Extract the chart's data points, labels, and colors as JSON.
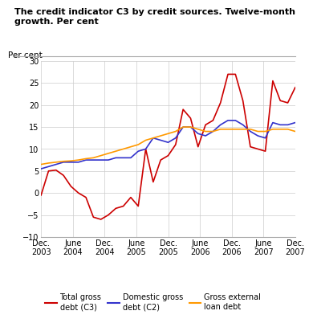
{
  "title_line1": "The credit indicator C3 by credit sources. Twelve-month",
  "title_line2": "growth. Per cent",
  "ylabel": "Per cent",
  "ylim": [
    -10,
    30
  ],
  "yticks": [
    -10,
    -5,
    0,
    5,
    10,
    15,
    20,
    25,
    30
  ],
  "x_labels": [
    "Dec.\n2003",
    "June\n2004",
    "Dec.\n2004",
    "June\n2005",
    "Dec.\n2005",
    "June\n2006",
    "Dec.\n2006",
    "June\n2007",
    "Dec.\n2007"
  ],
  "total_gross_debt_c3": [
    -0.5,
    5.0,
    5.2,
    4.0,
    1.5,
    0.0,
    -1.0,
    -5.5,
    -6.0,
    -5.0,
    -3.5,
    -3.0,
    -1.0,
    -3.0,
    10.0,
    2.5,
    7.5,
    8.5,
    11.0,
    19.0,
    17.0,
    10.5,
    15.5,
    16.5,
    20.5,
    27.0,
    27.0,
    21.0,
    10.5,
    10.0,
    9.5,
    25.5,
    21.0,
    20.5,
    24.0
  ],
  "domestic_gross_debt_c2": [
    5.5,
    6.0,
    6.5,
    7.0,
    7.0,
    7.0,
    7.5,
    7.5,
    7.5,
    7.5,
    8.0,
    8.0,
    8.0,
    9.5,
    10.0,
    12.5,
    12.0,
    11.5,
    12.5,
    15.0,
    15.0,
    13.5,
    13.0,
    14.0,
    15.5,
    16.5,
    16.5,
    15.5,
    14.0,
    13.0,
    12.5,
    16.0,
    15.5,
    15.5,
    16.0
  ],
  "gross_external_loan_debt": [
    6.5,
    6.8,
    7.0,
    7.2,
    7.3,
    7.5,
    7.8,
    8.0,
    8.5,
    9.0,
    9.5,
    10.0,
    10.5,
    11.0,
    12.0,
    12.5,
    13.0,
    13.5,
    14.0,
    15.0,
    15.0,
    14.5,
    14.0,
    14.0,
    14.5,
    14.5,
    14.5,
    14.5,
    14.5,
    14.0,
    14.0,
    14.5,
    14.5,
    14.5,
    14.0
  ],
  "color_c3": "#cc0000",
  "color_c2": "#3333cc",
  "color_ext": "#ff9900",
  "legend_labels": [
    "Total gross\ndebt (C3)",
    "Domestic gross\ndebt (C2)",
    "Gross external\nloan debt"
  ],
  "background_color": "#ffffff",
  "grid_color": "#cccccc"
}
